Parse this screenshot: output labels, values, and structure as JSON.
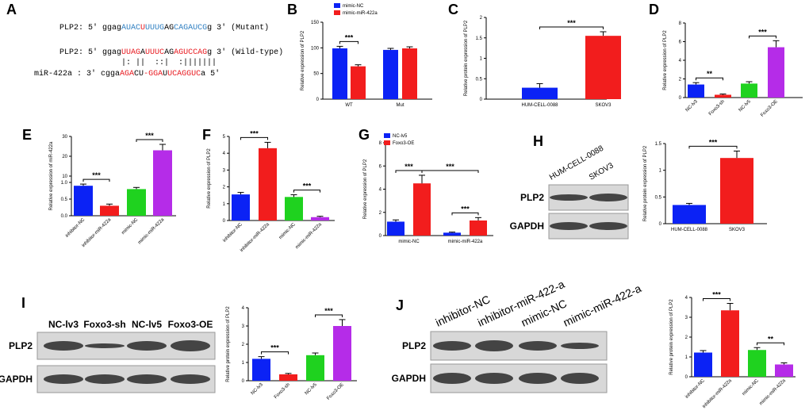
{
  "panel_labels": [
    "A",
    "B",
    "C",
    "D",
    "E",
    "F",
    "G",
    "H",
    "I",
    "J"
  ],
  "panel_a": {
    "mutant": {
      "prefix": "PLP2: 5' ggag",
      "s1": "AUAC",
      "s2": "U",
      "s3": "UUUG",
      "s4": "AG",
      "s5": "CAGAUCG",
      "suffix": "g 3' (Mutant)"
    },
    "wild": {
      "prefix": "PLP2: 5' ggag",
      "s1": "UUAG",
      "s2": "A",
      "s3": "UUUC",
      "s4": "AG",
      "s5": "AGUCCAG",
      "suffix": "g 3' (Wild-type)"
    },
    "pairs": "|: ||  ::|  :|||||||",
    "mir": {
      "prefix": "miR-422a : 3' cgga",
      "s1": "AGA",
      "s2": "CU",
      "s3": "-GGA",
      "s4": "U",
      "s5": "UCAGGUC",
      "suffix": "a 5'"
    }
  },
  "colors": {
    "blue": "#0b22f5",
    "red": "#f21d1d",
    "green": "#1fd21f",
    "purple": "#b52ce8"
  },
  "blots": {
    "H": {
      "lanes": [
        "HUM-CELL-0088",
        "SKOV3"
      ],
      "rows": [
        "PLP2",
        "GAPDH"
      ]
    },
    "I": {
      "lanes": [
        "NC-lv3",
        "Foxo3-sh",
        "NC-lv5",
        "Foxo3-OE"
      ],
      "rows": [
        "PLP2",
        "GAPDH"
      ]
    },
    "J": {
      "lanes": [
        "inhibitor-NC",
        "inhibitor-miR-422-a",
        "mimic-NC",
        "mimic-miR-422-a"
      ],
      "rows": [
        "PLP2",
        "GAPDH"
      ]
    }
  },
  "chart_data": [
    {
      "id": "B",
      "type": "bar",
      "ylabel": "Relative expression of PLP2",
      "ylim": [
        0,
        150
      ],
      "yticks": [
        0,
        50,
        100,
        150
      ],
      "categories": [
        "WT",
        "Mut"
      ],
      "series": [
        {
          "name": "mimic-NC",
          "color": "blue",
          "values": [
            99,
            96
          ],
          "err": [
            4,
            3
          ]
        },
        {
          "name": "mimic-miR-422a",
          "color": "red",
          "values": [
            64,
            99
          ],
          "err": [
            3,
            3
          ]
        }
      ],
      "sig": [
        {
          "label": "***"
        }
      ]
    },
    {
      "id": "C",
      "type": "bar",
      "ylabel": "Relative protein expression of PLP2",
      "ylim": [
        0,
        2.0
      ],
      "yticks": [
        0.0,
        0.5,
        1.0,
        1.5,
        2.0
      ],
      "categories": [
        "HUM-CELL-0088",
        "SKOV3"
      ],
      "values": [
        0.28,
        1.55
      ],
      "err": [
        0.1,
        0.1
      ],
      "colors": [
        "blue",
        "red"
      ],
      "sig": [
        {
          "label": "***"
        }
      ]
    },
    {
      "id": "D",
      "type": "bar",
      "ylabel": "Relative expression of PLP2",
      "ylim": [
        0,
        8
      ],
      "yticks": [
        0,
        2,
        4,
        6,
        8
      ],
      "categories": [
        "NC-lv3",
        "Foxo3-sh",
        "NC-lv5",
        "Foxo3-OE"
      ],
      "values": [
        1.4,
        0.3,
        1.5,
        5.4
      ],
      "err": [
        0.2,
        0.08,
        0.2,
        0.7
      ],
      "colors": [
        "blue",
        "red",
        "green",
        "purple"
      ],
      "sig": [
        {
          "label": "**"
        },
        {
          "label": "***"
        }
      ]
    },
    {
      "id": "E",
      "type": "bar",
      "ylabel": "Relative expression of miR-422a",
      "yticks": [
        "0.0",
        "0.5",
        "1.0",
        "10",
        "20",
        "30"
      ],
      "categories": [
        "inhibitor-NC",
        "inhibitor-miR-422a",
        "mimic-NC",
        "mimic-miR-422a"
      ],
      "values": [
        0.9,
        0.3,
        0.8,
        23
      ],
      "err": [
        0.05,
        0.05,
        0.05,
        3
      ],
      "colors": [
        "blue",
        "red",
        "green",
        "purple"
      ],
      "sig": [
        {
          "label": "***"
        },
        {
          "label": "***"
        }
      ]
    },
    {
      "id": "F",
      "type": "bar",
      "ylabel": "Relative expression of PLP2",
      "ylim": [
        0,
        5
      ],
      "yticks": [
        0,
        1,
        2,
        3,
        4,
        5
      ],
      "categories": [
        "inhibitor-NC",
        "inhibitor-miR-422a",
        "mimic-NC",
        "mimic-miR-422a"
      ],
      "values": [
        1.55,
        4.3,
        1.4,
        0.2
      ],
      "err": [
        0.12,
        0.35,
        0.13,
        0.05
      ],
      "colors": [
        "blue",
        "red",
        "green",
        "purple"
      ],
      "sig": [
        {
          "label": "***"
        },
        {
          "label": "***"
        }
      ]
    },
    {
      "id": "G",
      "type": "bar",
      "ylabel": "Relative expression of PLP2",
      "ylim": [
        0,
        8
      ],
      "yticks": [
        0,
        2,
        4,
        6,
        8
      ],
      "categories": [
        "mimic-NC",
        "mimic-miR-422a"
      ],
      "series": [
        {
          "name": "NC-lv5",
          "color": "blue",
          "values": [
            1.2,
            0.25
          ],
          "err": [
            0.15,
            0.05
          ]
        },
        {
          "name": "Foxo3-OE",
          "color": "red",
          "values": [
            4.5,
            1.3
          ],
          "err": [
            0.7,
            0.25
          ]
        }
      ],
      "sig": [
        {
          "label": "***"
        },
        {
          "label": "***"
        },
        {
          "label": "***"
        }
      ]
    },
    {
      "id": "H",
      "type": "bar",
      "ylabel": "Relative protein expression of PLP2",
      "ylim": [
        0,
        1.5
      ],
      "yticks": [
        0.0,
        0.5,
        1.0,
        1.5
      ],
      "categories": [
        "HUM-CELL-0088",
        "SKOV3"
      ],
      "values": [
        0.35,
        1.23
      ],
      "err": [
        0.03,
        0.13
      ],
      "colors": [
        "blue",
        "red"
      ],
      "sig": [
        {
          "label": "***"
        }
      ]
    },
    {
      "id": "I",
      "type": "bar",
      "ylabel": "Relative protein expression of PLP2",
      "ylim": [
        0,
        4
      ],
      "yticks": [
        0,
        1,
        2,
        3,
        4
      ],
      "categories": [
        "NC-lv3",
        "Foxo3-sh",
        "NC-lv5",
        "Foxo3-OE"
      ],
      "values": [
        1.2,
        0.35,
        1.4,
        3.0
      ],
      "err": [
        0.12,
        0.05,
        0.12,
        0.35
      ],
      "colors": [
        "blue",
        "red",
        "green",
        "purple"
      ],
      "sig": [
        {
          "label": "***"
        },
        {
          "label": "***"
        }
      ]
    },
    {
      "id": "J",
      "type": "bar",
      "ylabel": "Relative protein expression of PLP2",
      "ylim": [
        0,
        4
      ],
      "yticks": [
        0,
        1,
        2,
        3,
        4
      ],
      "categories": [
        "inhibitor-NC",
        "inhibitor-miR-422a",
        "mimic-NC",
        "mimic-miR-422a"
      ],
      "values": [
        1.22,
        3.35,
        1.35,
        0.62
      ],
      "err": [
        0.1,
        0.35,
        0.12,
        0.08
      ],
      "colors": [
        "blue",
        "red",
        "green",
        "purple"
      ],
      "sig": [
        {
          "label": "***"
        },
        {
          "label": "**"
        }
      ]
    }
  ]
}
